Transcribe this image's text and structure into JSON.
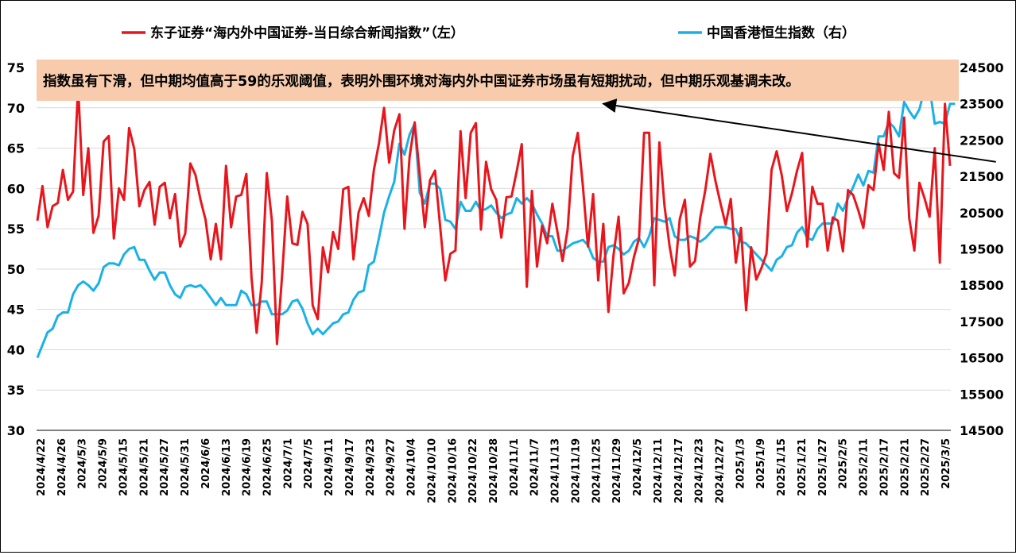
{
  "chart_data": {
    "type": "line",
    "annotation": "指数虽有下滑，但中期均值高于59的乐观阈值，表明外围环境对海内外中国证券市场虽有短期扰动，但中期乐观基调未改。",
    "legend": [
      {
        "label": "东子证券“海内外中国证券-当日综合新闻指数”（左）",
        "color": "#e8161c"
      },
      {
        "label": "中国香港恒生指数（右）",
        "color": "#1ab2e6"
      }
    ],
    "y_left": {
      "min": 30,
      "max": 75,
      "ticks": [
        "30",
        "35",
        "40",
        "45",
        "50",
        "55",
        "60",
        "65",
        "70",
        "75"
      ]
    },
    "y_right": {
      "min": 14500,
      "max": 24500,
      "ticks": [
        "14500",
        "15500",
        "16500",
        "17500",
        "18500",
        "19500",
        "20500",
        "21500",
        "22500",
        "23500",
        "24500"
      ]
    },
    "x_tick_labels": [
      "2024/4/22",
      "2024/4/26",
      "2024/5/3",
      "2024/5/9",
      "2024/5/15",
      "2024/5/21",
      "2024/5/27",
      "2024/5/31",
      "2024/6/6",
      "2024/6/13",
      "2024/6/19",
      "2024/6/25",
      "2024/7/1",
      "2024/7/5",
      "2024/9/11",
      "2024/9/17",
      "2024/9/23",
      "2024/9/27",
      "2024/10/4",
      "2024/10/10",
      "2024/10/16",
      "2024/10/22",
      "2024/10/28",
      "2024/11/1",
      "2024/11/7",
      "2024/11/13",
      "2024/11/19",
      "2024/11/25",
      "2024/11/29",
      "2024/12/5",
      "2024/12/11",
      "2024/12/17",
      "2024/12/23",
      "2024/12/27",
      "2025/1/3",
      "2025/1/9",
      "2025/1/15",
      "2025/1/21",
      "2025/1/27",
      "2025/2/5",
      "2025/2/11",
      "2025/2/17",
      "2025/2/21",
      "2025/2/27",
      "2025/3/5"
    ],
    "series": [
      {
        "name": "东子证券“海内外中国证券-当日综合新闻指数”（左）",
        "axis": "left",
        "color": "#e8161c",
        "values": [
          56,
          60.3,
          55.2,
          57.8,
          58.2,
          62.3,
          58.6,
          59.6,
          72.6,
          59.2,
          65,
          54.5,
          56.6,
          65.8,
          66.5,
          53.8,
          60,
          58.6,
          67.5,
          64.9,
          57.8,
          59.8,
          60.8,
          55.5,
          60.2,
          60.7,
          56.3,
          59.3,
          52.8,
          54.4,
          63.1,
          61.7,
          58.6,
          56.1,
          51.2,
          55.6,
          51.2,
          62.8,
          55.2,
          59,
          59.2,
          61.8,
          48.9,
          42.1,
          48.3,
          61.9,
          56,
          40.7,
          49.1,
          59,
          53.2,
          53,
          57.1,
          55.6,
          45.5,
          43.8,
          52.7,
          49.6,
          54.6,
          52.5,
          59.9,
          60.2,
          51.2,
          57,
          58.8,
          56.6,
          62.3,
          65.6,
          70,
          63.2,
          67.2,
          69.2,
          55,
          63.9,
          68.2,
          61.7,
          55.2,
          61,
          62.2,
          55.2,
          48.6,
          51.9,
          52.3,
          67.1,
          58.8,
          66.9,
          68.1,
          54.9,
          63.3,
          59.9,
          58.6,
          53.9,
          58.9,
          59,
          62.1,
          65.5,
          47.8,
          59.7,
          50.3,
          55.4,
          53.2,
          58.1,
          54.6,
          51,
          54.9,
          64,
          66.9,
          60.3,
          52.8,
          59.3,
          48.6,
          55.6,
          44.7,
          51.7,
          56.5,
          47,
          48.3,
          51.5,
          53.8,
          66.9,
          66.9,
          48,
          65.7,
          57.9,
          52.8,
          49.2,
          56.2,
          58.6,
          50.3,
          51,
          56.3,
          59.8,
          64.3,
          60.9,
          58.1,
          55.5,
          58.7,
          50.8,
          55.1,
          44.9,
          52.7,
          48.7,
          50.1,
          51.9,
          62.3,
          64.6,
          61.6,
          57.2,
          59.4,
          62.2,
          64.4,
          52.8,
          60.2,
          58.1,
          58.1,
          52.3,
          56.4,
          56,
          52.2,
          59.8,
          59.2,
          57.3,
          55.1,
          60.4,
          59.8,
          65.6,
          62.3,
          69.5,
          61.9,
          61.3,
          68.8,
          56.3,
          52.3,
          60.7,
          58.8,
          56.5,
          65,
          50.8,
          70.5,
          62.8
        ]
      },
      {
        "name": "中国香港恒生指数（右）",
        "axis": "right",
        "color": "#1ab2e6",
        "values": [
          16500,
          16850,
          17200,
          17300,
          17650,
          17750,
          17750,
          18250,
          18500,
          18600,
          18500,
          18350,
          18550,
          19000,
          19100,
          19100,
          19050,
          19350,
          19500,
          19550,
          19200,
          19200,
          18900,
          18650,
          18850,
          18850,
          18500,
          18250,
          18150,
          18450,
          18500,
          18450,
          18500,
          18350,
          18150,
          17950,
          18150,
          17950,
          17950,
          17950,
          18350,
          18250,
          17950,
          17950,
          18050,
          18050,
          17700,
          17700,
          17700,
          17800,
          18050,
          18100,
          17850,
          17450,
          17150,
          17300,
          17150,
          17300,
          17450,
          17500,
          17700,
          17750,
          18100,
          18300,
          18350,
          19050,
          19150,
          19800,
          20500,
          20950,
          21350,
          22400,
          22100,
          22650,
          22950,
          21050,
          20750,
          21300,
          21300,
          21150,
          20300,
          20250,
          20050,
          20800,
          20550,
          20550,
          20800,
          20550,
          20600,
          20700,
          20500,
          20350,
          20450,
          20500,
          20900,
          20750,
          20900,
          20750,
          20450,
          20200,
          19850,
          19850,
          19450,
          19450,
          19550,
          19650,
          19700,
          19750,
          19600,
          19250,
          19150,
          19150,
          19550,
          19600,
          19500,
          19350,
          19450,
          19700,
          19800,
          19550,
          19850,
          20350,
          20300,
          20250,
          20350,
          19850,
          19750,
          19750,
          19850,
          19800,
          19700,
          19800,
          19950,
          20100,
          20100,
          20100,
          20050,
          20050,
          19700,
          19650,
          19500,
          19350,
          19200,
          19050,
          18900,
          19200,
          19300,
          19550,
          19600,
          19950,
          20100,
          19800,
          19750,
          20050,
          20200,
          20200,
          20200,
          20750,
          20550,
          20900,
          21200,
          21550,
          21250,
          21650,
          21600,
          22600,
          22600,
          23000,
          22850,
          22600,
          23550,
          23300,
          23100,
          23350,
          23900,
          23950,
          22950,
          23000,
          22950,
          23500,
          23500
        ]
      }
    ],
    "arrow_line": {
      "from": {
        "index": 188,
        "value": 63.3
      },
      "to": {
        "index": 111,
        "value": 70.5
      }
    }
  }
}
